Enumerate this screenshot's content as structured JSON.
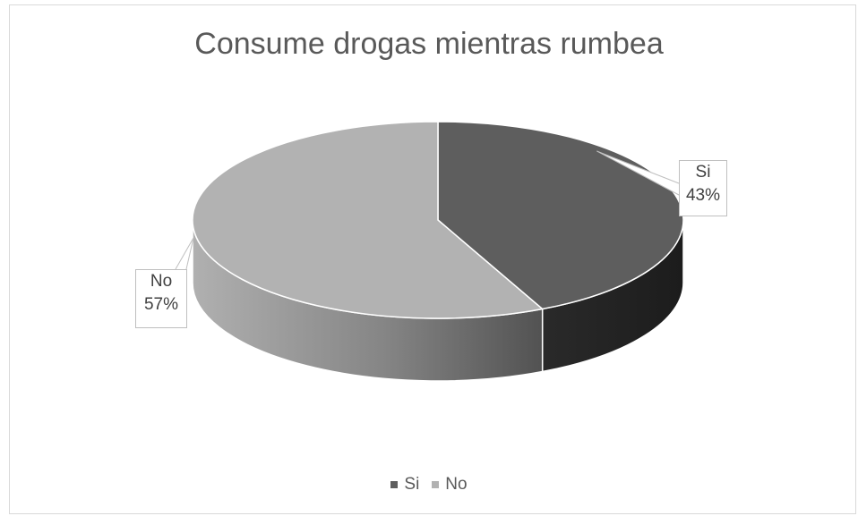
{
  "chart_data": {
    "type": "pie",
    "title": "Consume drogas mientras rumbea",
    "categories": [
      "Si",
      "No"
    ],
    "values": [
      43,
      57
    ],
    "data_labels": [
      {
        "category": "Si",
        "percent": "43%"
      },
      {
        "category": "No",
        "percent": "57%"
      }
    ],
    "colors": {
      "Si": "#5e5e5e",
      "No": "#b2b2b2"
    },
    "style": "3d",
    "legend_position": "bottom"
  }
}
